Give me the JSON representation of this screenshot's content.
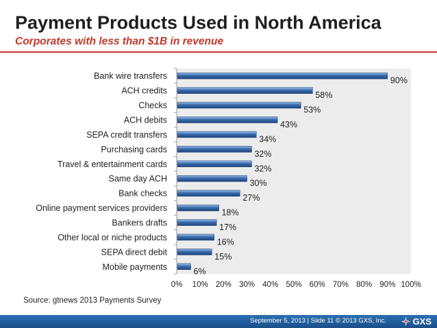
{
  "slide": {
    "title": "Payment Products Used in North America",
    "subtitle": "Corporates with less than $1B in revenue",
    "source": "Source: gtnews 2013 Payments Survey",
    "footer": "September 5, 2013  |  Slide 11  © 2013 GXS, Inc.",
    "logo_text": "GXS",
    "colors": {
      "accent": "#c9302c",
      "bar": "#3a6dae",
      "footer": "#2d6fb3",
      "plot_bg": "#ececec"
    }
  },
  "chart_data": {
    "type": "bar",
    "orientation": "horizontal",
    "categories": [
      "Bank wire transfers",
      "ACH credits",
      "Checks",
      "ACH debits",
      "SEPA credit transfers",
      "Purchasing cards",
      "Travel & entertainment cards",
      "Same day ACH",
      "Bank checks",
      "Online payment services providers",
      "Bankers drafts",
      "Other local or niche products",
      "SEPA direct debit",
      "Mobile payments"
    ],
    "values": [
      90,
      58,
      53,
      43,
      34,
      32,
      32,
      30,
      27,
      18,
      17,
      16,
      15,
      6
    ],
    "value_labels": [
      "90%",
      "58%",
      "53%",
      "43%",
      "34%",
      "32%",
      "32%",
      "30%",
      "27%",
      "18%",
      "17%",
      "16%",
      "15%",
      "6%"
    ],
    "xlim": [
      0,
      100
    ],
    "xticks": [
      0,
      10,
      20,
      30,
      40,
      50,
      60,
      70,
      80,
      90,
      100
    ],
    "xtick_labels": [
      "0%",
      "10%",
      "20%",
      "30%",
      "40%",
      "50%",
      "60%",
      "70%",
      "80%",
      "90%",
      "100%"
    ],
    "grid": false
  }
}
